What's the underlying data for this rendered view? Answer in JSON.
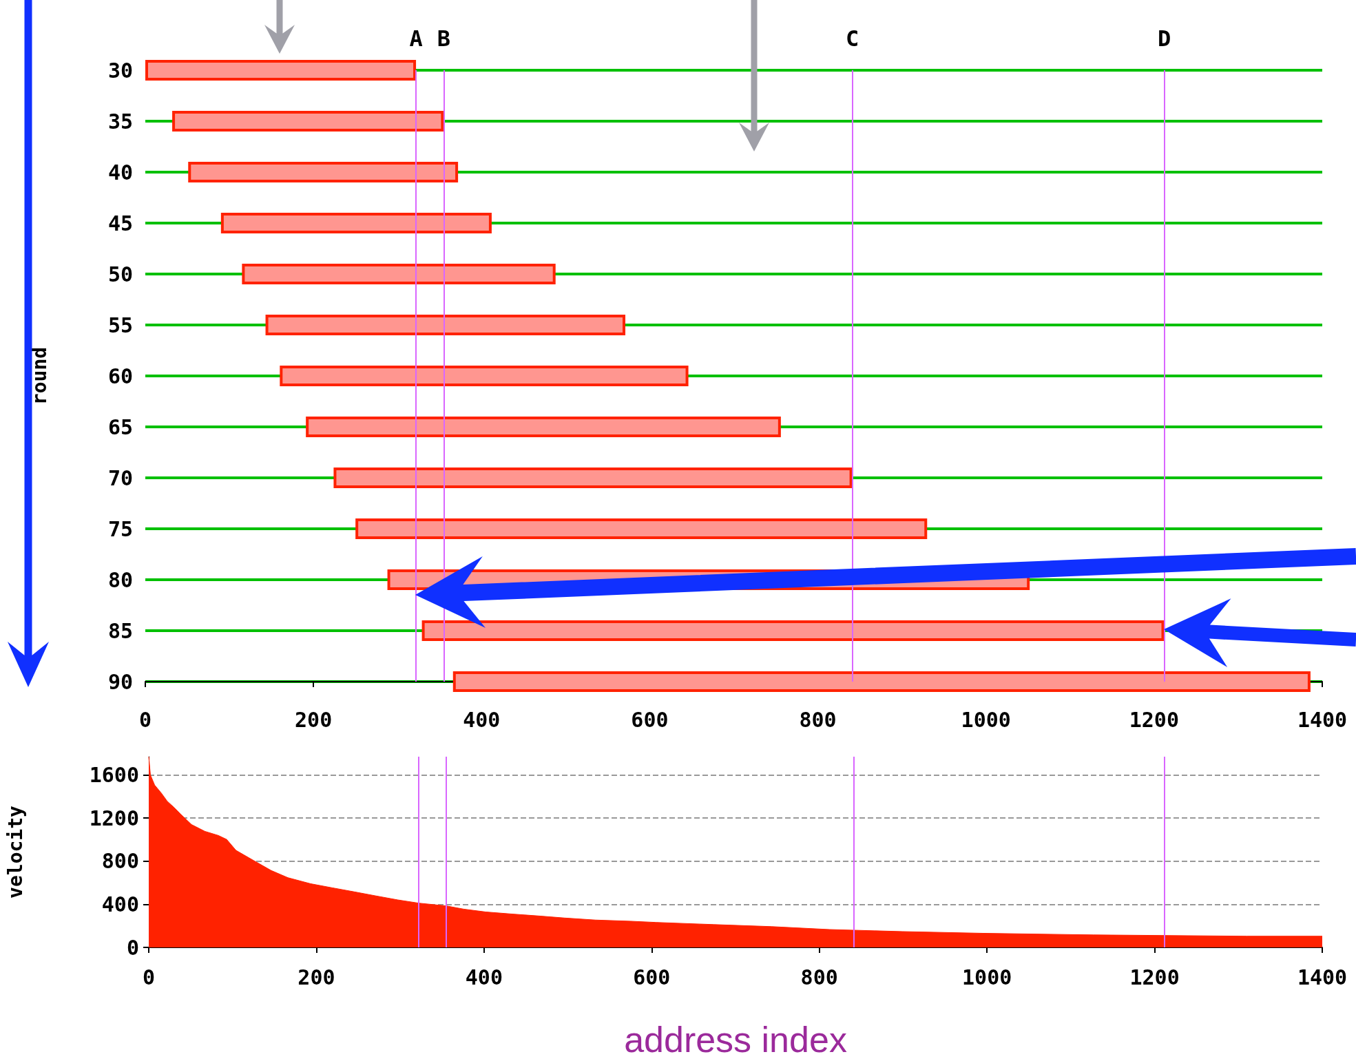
{
  "chart_data": [
    {
      "type": "bar",
      "orientation": "horizontal",
      "ylabel": "round",
      "categories": [
        "30",
        "35",
        "40",
        "45",
        "50",
        "55",
        "60",
        "65",
        "70",
        "75",
        "80",
        "85",
        "90"
      ],
      "values": [
        322,
        323,
        321,
        322,
        373,
        428,
        486,
        565,
        617,
        680,
        764,
        883,
        1020
      ],
      "color": "#ff9690",
      "base": [
        0,
        32,
        51,
        90,
        115,
        143,
        160,
        191,
        224,
        250,
        288,
        329,
        366
      ],
      "xlim": [
        0,
        1400
      ],
      "xticks": [
        0,
        200,
        400,
        600,
        800,
        1000,
        1200,
        1400
      ],
      "grid": "y",
      "ref_lines": [
        {
          "axis": "x",
          "value": 322,
          "label": "A",
          "color": "#d966ff"
        },
        {
          "axis": "x",
          "value": 355,
          "label": "B",
          "color": "#d966ff"
        },
        {
          "axis": "x",
          "value": 841,
          "label": "C",
          "color": "#d966ff"
        },
        {
          "axis": "x",
          "value": 1212,
          "label": "D",
          "color": "#d966ff"
        }
      ]
    },
    {
      "type": "area",
      "xlabel": "address index",
      "ylabel": "velocity",
      "series": [
        {
          "color": "#ff2200",
          "x": [
            0,
            2,
            7,
            15,
            22,
            30,
            38,
            51,
            67,
            83,
            93,
            104,
            125,
            146,
            166,
            193,
            219,
            245,
            271,
            297,
            322,
            355,
            376,
            402,
            433,
            465,
            496,
            533,
            575,
            605,
            674,
            743,
            812,
            899,
            995,
            1127,
            1310,
            1400
          ],
          "values": [
            1770,
            1600,
            1507,
            1432,
            1357,
            1300,
            1237,
            1140,
            1077,
            1039,
            1002,
            901,
            807,
            714,
            647,
            591,
            553,
            516,
            478,
            441,
            411,
            385,
            355,
            329,
            310,
            292,
            273,
            254,
            243,
            232,
            212,
            193,
            166,
            147,
            131,
            116,
            104,
            104
          ]
        }
      ],
      "xlim": [
        0,
        1400
      ],
      "xticks": [
        0,
        200,
        400,
        600,
        800,
        1000,
        1200,
        1400
      ],
      "ylim": [
        0,
        1770
      ],
      "yticks": [
        0,
        400,
        800,
        1200,
        1600
      ],
      "grid": "y",
      "ref_lines": [
        {
          "axis": "x",
          "value": 322,
          "color": "#d966ff"
        },
        {
          "axis": "x",
          "value": 355,
          "color": "#d966ff"
        },
        {
          "axis": "x",
          "value": 841,
          "color": "#d966ff"
        },
        {
          "axis": "x",
          "value": 1212,
          "color": "#d966ff"
        }
      ]
    }
  ]
}
